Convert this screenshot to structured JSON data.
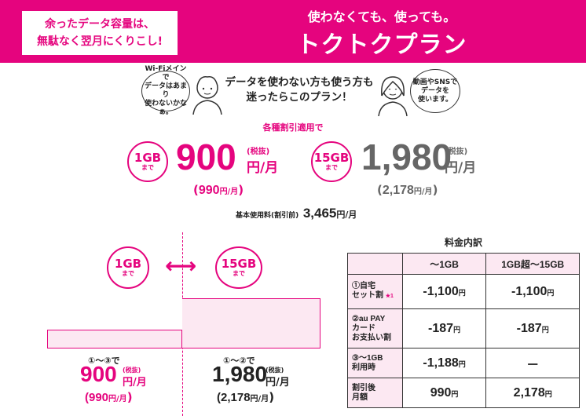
{
  "header": {
    "tag_line1": "余ったデータ容量は、",
    "tag_line2": "無駄なく翌月にくりこし!",
    "subtitle": "使わなくても、使っても。",
    "title": "トクトクプラン"
  },
  "personas": {
    "left_bubble": [
      "Wi-Fiメインで",
      "データはあまり",
      "使わないかなぁ。"
    ],
    "right_bubble": [
      "動画やSNSで",
      "データを",
      "使います。"
    ],
    "tagline_line1": "データを使わない方も使う方も",
    "tagline_line2": "迷ったらこのプラン！"
  },
  "pricing": {
    "discount_note": "各種割引適用で",
    "tier1": {
      "gb": "1GB",
      "made": "まで",
      "price": "900",
      "tax": "(税抜)",
      "unit": "円/月",
      "incl_open": "(",
      "incl": "990",
      "incl_unit": "円/月",
      "incl_close": ")"
    },
    "tier2": {
      "gb": "15GB",
      "made": "まで",
      "price": "1,980",
      "tax": "(税抜)",
      "unit": "円/月",
      "incl_open": "(",
      "incl": "2,178",
      "incl_unit": "円/月",
      "incl_close": ")"
    },
    "base_label": "基本使用料(割引前)",
    "base_price": "3,465",
    "base_unit": "円/月"
  },
  "graph": {
    "left_circle": {
      "gb": "1GB",
      "made": "まで"
    },
    "right_circle": {
      "gb": "15GB",
      "made": "まで"
    },
    "arrow": "⟷",
    "left": {
      "cond": "①～③で",
      "price": "900",
      "tax": "(税抜)",
      "unit": "円/月",
      "incl": "(990",
      "incl_unit": "円/月",
      "incl_close": ")"
    },
    "right": {
      "cond": "①～②で",
      "price": "1,980",
      "tax": "(税抜)",
      "unit": "円/月",
      "incl": "(2,178",
      "incl_unit": "円/月",
      "incl_close": ")"
    }
  },
  "fee_table": {
    "title": "料金内訳",
    "col1": "～1GB",
    "col2": "1GB超～15GB",
    "rows": [
      {
        "label_lines": [
          "①自宅",
          "セット割"
        ],
        "note": "★1",
        "v1": "-1,100",
        "v2": "-1,100",
        "yen": "円"
      },
      {
        "label_lines": [
          "②au PAY",
          "カード",
          "お支払い割"
        ],
        "v1": "-187",
        "v2": "-187",
        "yen": "円"
      },
      {
        "label_lines": [
          "③～1GB",
          "利用時"
        ],
        "v1": "-1,188",
        "v2": "－",
        "yen": "円"
      },
      {
        "label_lines": [
          "割引後",
          "月額"
        ],
        "v1": "990",
        "v2": "2,178",
        "yen": "円"
      }
    ]
  },
  "colors": {
    "brand": "#e5047e",
    "light_pink": "#fce8f2",
    "gray": "#666666"
  }
}
